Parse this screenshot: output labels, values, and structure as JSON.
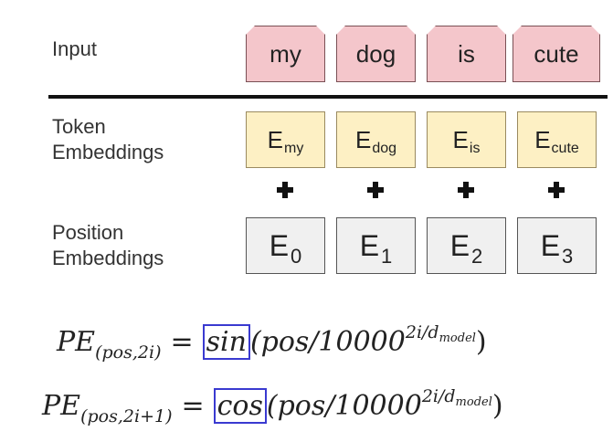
{
  "labels": {
    "input": "Input",
    "token_line1": "Token",
    "token_line2": "Embeddings",
    "position_line1": "Position",
    "position_line2": "Embeddings"
  },
  "input_tokens": [
    "my",
    "dog",
    "is",
    "cute"
  ],
  "token_embeddings": [
    {
      "base": "E",
      "sub": "my"
    },
    {
      "base": "E",
      "sub": "dog"
    },
    {
      "base": "E",
      "sub": "is"
    },
    {
      "base": "E",
      "sub": "cute"
    }
  ],
  "position_embeddings": [
    {
      "base": "E",
      "sub": "0"
    },
    {
      "base": "E",
      "sub": "1"
    },
    {
      "base": "E",
      "sub": "2"
    },
    {
      "base": "E",
      "sub": "3"
    }
  ],
  "formulas": {
    "sin": {
      "lhs": "PE",
      "lhs_sub": "(pos,2i)",
      "eq": "=",
      "fn": "sin",
      "open": "(pos/10000",
      "exp": "2i/d",
      "exp_sub": "model",
      "close": ")"
    },
    "cos": {
      "lhs": "PE",
      "lhs_sub": "(pos,2i+1)",
      "eq": "=",
      "fn": "cos",
      "open": "(pos/10000",
      "exp": "2i/d",
      "exp_sub": "model",
      "close": ")"
    }
  },
  "colors": {
    "input_fill": "#f4c6cb",
    "token_fill": "#fdf0c4",
    "position_fill": "#f0f0f0",
    "highlight_box": "#3a3ad0"
  }
}
